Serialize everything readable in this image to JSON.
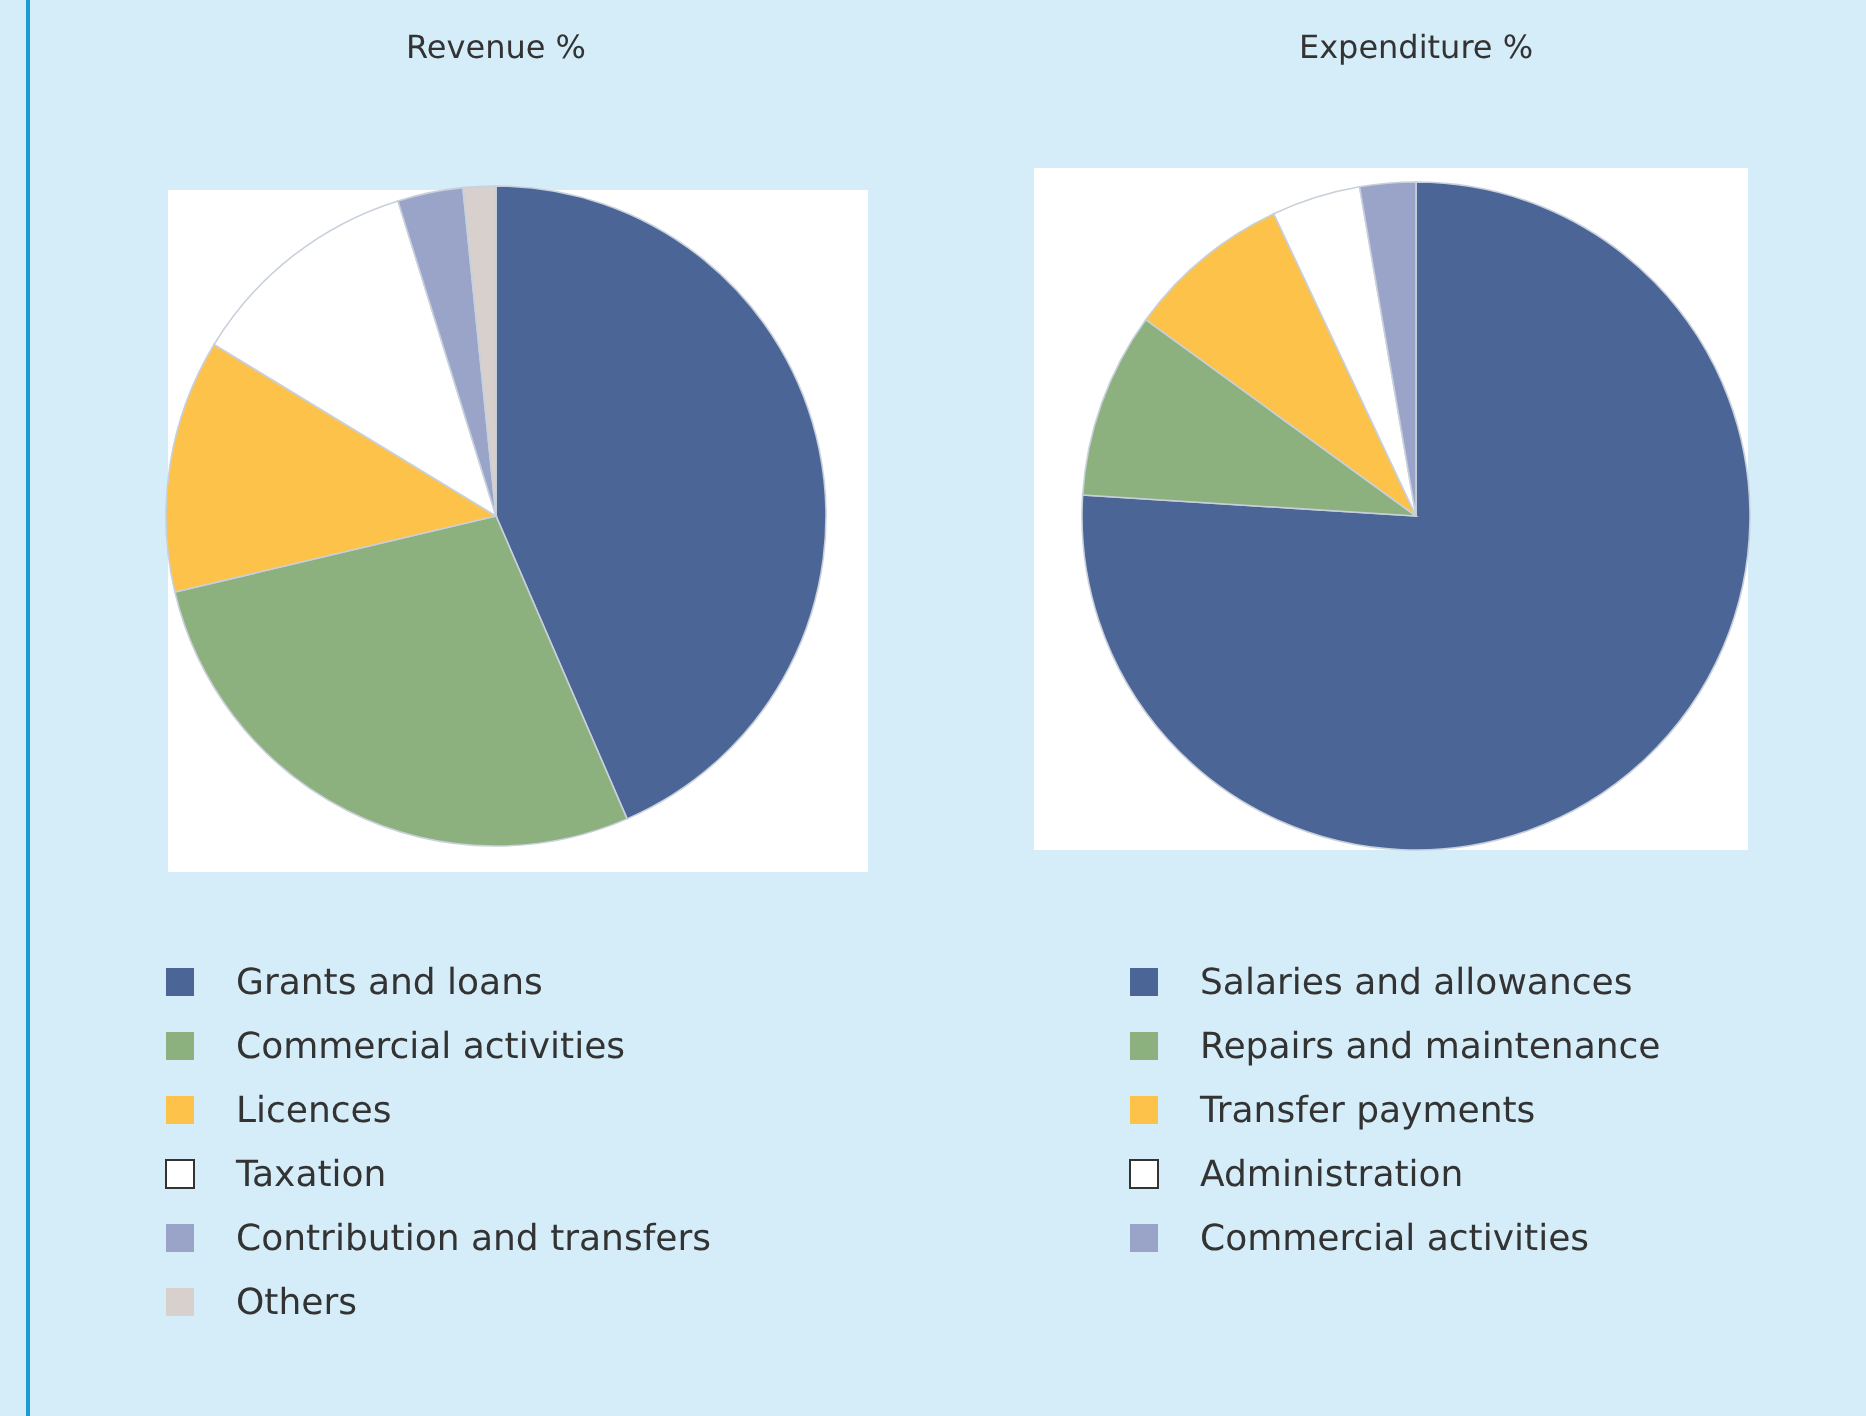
{
  "chart_data": [
    {
      "type": "pie",
      "title": "Revenue %",
      "categories": [
        "Grants and loans",
        "Commercial activities",
        "Licences",
        "Taxation",
        "Contribution and transfers",
        "Others"
      ],
      "values": [
        43.5,
        27.8,
        12.4,
        11.5,
        3.2,
        1.6
      ],
      "colors": [
        "#4a6596",
        "#8db07f",
        "#fdc24a",
        "#ffffff",
        "#9aa3c8",
        "#d8d0cc"
      ],
      "legend": "bottom"
    },
    {
      "type": "pie",
      "title": "Expenditure %",
      "categories": [
        "Salaries and allowances",
        "Repairs and maintenance",
        "Transfer payments",
        "Administration",
        "Commercial activities"
      ],
      "values": [
        76,
        9,
        8,
        4.3,
        2.7
      ],
      "colors": [
        "#4a6596",
        "#8db07f",
        "#fdc24a",
        "#ffffff",
        "#9aa3c8"
      ],
      "legend": "bottom"
    }
  ]
}
